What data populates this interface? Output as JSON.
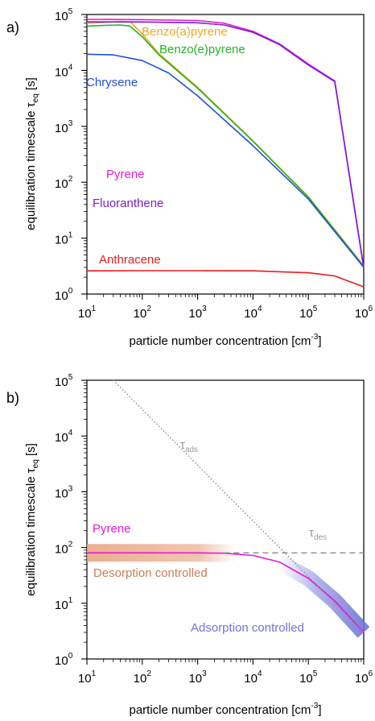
{
  "chart_data": [
    {
      "panel_label": "a)",
      "type": "line",
      "xlabel": "particle number concentration [cm",
      "xlabel_sup": "-3",
      "xlabel_end": "]",
      "ylabel": "equilibration timescale τ",
      "ylabel_sub": "eq",
      "ylabel_end": " [s]",
      "xscale": "log",
      "yscale": "log",
      "xlim": [
        10,
        1000000
      ],
      "ylim": [
        1,
        100000
      ],
      "x_tick_base": "10",
      "x_tick_exponents": [
        "1",
        "2",
        "3",
        "4",
        "5",
        "6"
      ],
      "y_tick_base": "10",
      "y_tick_exponents": [
        "0",
        "1",
        "2",
        "3",
        "4",
        "5"
      ],
      "series": [
        {
          "name": "Benzo(a)pyrene",
          "color": "#f5a623",
          "points": [
            [
              10,
              70000
            ],
            [
              20,
              72000
            ],
            [
              40,
              75000
            ],
            [
              60,
              74000
            ],
            [
              100,
              45000
            ],
            [
              200,
              20000
            ],
            [
              1000,
              5000
            ],
            [
              10000,
              550
            ],
            [
              100000,
              55
            ],
            [
              1000000,
              3.2
            ]
          ]
        },
        {
          "name": "Benzo(e)pyrene",
          "color": "#22b522",
          "points": [
            [
              10,
              62000
            ],
            [
              20,
              64000
            ],
            [
              40,
              65000
            ],
            [
              60,
              62000
            ],
            [
              100,
              40000
            ],
            [
              200,
              19000
            ],
            [
              1000,
              4800
            ],
            [
              10000,
              540
            ],
            [
              100000,
              54
            ],
            [
              1000000,
              3.1
            ]
          ]
        },
        {
          "name": "Chrysene",
          "color": "#1f4fd8",
          "points": [
            [
              10,
              19500
            ],
            [
              30,
              19000
            ],
            [
              100,
              15000
            ],
            [
              300,
              9000
            ],
            [
              1000,
              3500
            ],
            [
              10000,
              450
            ],
            [
              100000,
              50
            ],
            [
              1000000,
              3.0
            ]
          ]
        },
        {
          "name": "Pyrene",
          "color": "#e619d6",
          "points": [
            [
              10,
              82000
            ],
            [
              100,
              81000
            ],
            [
              1000,
              78000
            ],
            [
              3000,
              70000
            ],
            [
              10000,
              50000
            ],
            [
              30000,
              30000
            ],
            [
              100000,
              13000
            ],
            [
              300000,
              6500
            ],
            [
              1000000,
              3.0
            ]
          ]
        },
        {
          "name": "Fluoranthene",
          "color": "#7a1fc7",
          "points": [
            [
              10,
              74000
            ],
            [
              100,
              73500
            ],
            [
              1000,
              71000
            ],
            [
              3000,
              65000
            ],
            [
              10000,
              48000
            ],
            [
              30000,
              29000
            ],
            [
              100000,
              12500
            ],
            [
              300000,
              6300
            ],
            [
              1000000,
              2.9
            ]
          ]
        },
        {
          "name": "Anthracene",
          "color": "#e81c1c",
          "points": [
            [
              10,
              2.6
            ],
            [
              100,
              2.62
            ],
            [
              1000,
              2.62
            ],
            [
              10000,
              2.6
            ],
            [
              100000,
              2.4
            ],
            [
              300000,
              2.1
            ],
            [
              1000000,
              1.35
            ]
          ]
        }
      ]
    },
    {
      "panel_label": "b)",
      "type": "line",
      "xlabel": "particle number concentration [cm",
      "xlabel_sup": "-3",
      "xlabel_end": "]",
      "ylabel": "equilibration timescale τ",
      "ylabel_sub": "eq",
      "ylabel_end": " [s]",
      "xscale": "log",
      "yscale": "log",
      "xlim": [
        10,
        1000000
      ],
      "ylim": [
        1,
        100000
      ],
      "x_tick_base": "10",
      "x_tick_exponents": [
        "1",
        "2",
        "3",
        "4",
        "5",
        "6"
      ],
      "y_tick_base": "10",
      "y_tick_exponents": [
        "0",
        "1",
        "2",
        "3",
        "4",
        "5"
      ],
      "series": [
        {
          "name": "Pyrene",
          "color": "#e619d6",
          "points": [
            [
              10,
              80
            ],
            [
              100,
              80
            ],
            [
              1000,
              80
            ],
            [
              3000,
              79
            ],
            [
              10000,
              72
            ],
            [
              30000,
              55
            ],
            [
              100000,
              28
            ],
            [
              300000,
              11
            ],
            [
              1000000,
              3.0
            ]
          ]
        },
        {
          "name": "τ",
          "name_sub": "ads",
          "color": "#888888",
          "style": "dotted",
          "points": [
            [
              30,
              100000
            ],
            [
              1000000,
              3.0
            ]
          ]
        },
        {
          "name": "τ",
          "name_sub": "des",
          "color": "#888888",
          "style": "dashed",
          "points": [
            [
              3000,
              80
            ],
            [
              1000000,
              80
            ]
          ]
        }
      ],
      "bands": [
        {
          "name": "Desorption controlled",
          "color": "#e8a07c",
          "points": [
            [
              10,
              80
            ],
            [
              100,
              80
            ],
            [
              1000,
              80
            ],
            [
              5000,
              79
            ]
          ]
        },
        {
          "name": "Adsorption controlled",
          "color": "#6f74d8",
          "points": [
            [
              30000,
              55
            ],
            [
              100000,
              28
            ],
            [
              300000,
              11
            ],
            [
              1000000,
              3.0
            ]
          ]
        }
      ]
    }
  ]
}
